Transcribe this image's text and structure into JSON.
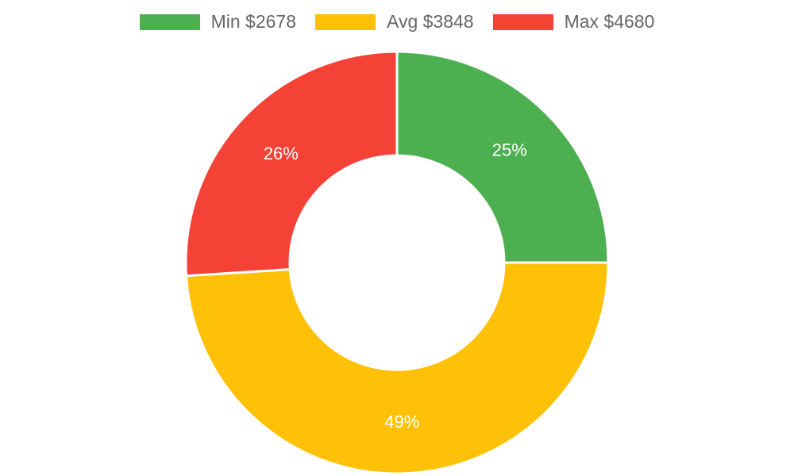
{
  "chart_data": {
    "type": "pie",
    "categories": [
      "Min $2678",
      "Avg $3848",
      "Max $4680"
    ],
    "values": [
      25,
      49,
      26
    ],
    "value_labels": [
      "25%",
      "49%",
      "26%"
    ],
    "colors": [
      "#4caf50",
      "#ffc107",
      "#f44336"
    ],
    "variant": "doughnut",
    "legend_position": "top-center"
  },
  "legend": {
    "items": [
      {
        "label": "Min $2678",
        "color": "#4caf50"
      },
      {
        "label": "Avg $3848",
        "color": "#ffc107"
      },
      {
        "label": "Max $4680",
        "color": "#f44336"
      }
    ]
  }
}
